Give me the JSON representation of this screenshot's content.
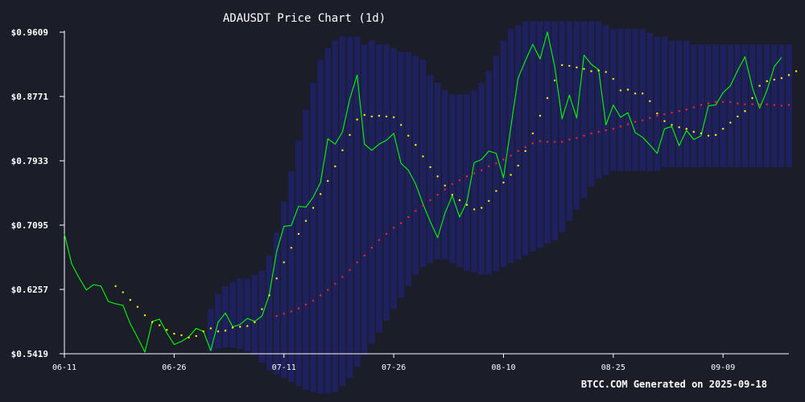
{
  "chart_data": {
    "type": "line",
    "title": "ADAUSDT Price Chart (1d)",
    "footer": "BTCC.COM Generated on 2025-09-18",
    "xlabel": "",
    "ylabel": "",
    "y_ticks": [
      "$0.9609",
      "$0.8771",
      "$0.7933",
      "$0.7095",
      "$0.6257",
      "$0.5419"
    ],
    "y_tick_values": [
      0.9609,
      0.8771,
      0.7933,
      0.7095,
      0.6257,
      0.5419
    ],
    "ylim": [
      0.5419,
      0.9609
    ],
    "x_ticks": [
      "06-11",
      "06-26",
      "07-11",
      "07-26",
      "08-10",
      "08-25",
      "09-09"
    ],
    "x_tick_days": [
      0,
      15,
      30,
      45,
      60,
      75,
      90
    ],
    "xlim_days": [
      0,
      99
    ],
    "grid": false,
    "legend": "none",
    "colors": {
      "background": "#1b1d29",
      "price": "#00ff00",
      "ma_short": "#ffff00",
      "ma_long": "#ff2020",
      "band": "#23238a",
      "axis": "#ffffff"
    },
    "series": [
      {
        "key": "price",
        "style": "line",
        "x_start_day": 0,
        "values": [
          0.698,
          0.659,
          0.641,
          0.625,
          0.632,
          0.63,
          0.61,
          0.607,
          0.605,
          0.581,
          0.563,
          0.544,
          0.584,
          0.587,
          0.569,
          0.554,
          0.558,
          0.564,
          0.575,
          0.571,
          0.546,
          0.583,
          0.595,
          0.577,
          0.58,
          0.588,
          0.584,
          0.591,
          0.619,
          0.675,
          0.708,
          0.709,
          0.734,
          0.733,
          0.746,
          0.765,
          0.822,
          0.815,
          0.831,
          0.874,
          0.905,
          0.815,
          0.807,
          0.815,
          0.82,
          0.829,
          0.79,
          0.781,
          0.763,
          0.737,
          0.714,
          0.693,
          0.725,
          0.748,
          0.72,
          0.74,
          0.791,
          0.795,
          0.806,
          0.803,
          0.771,
          0.837,
          0.901,
          0.924,
          0.945,
          0.926,
          0.961,
          0.916,
          0.848,
          0.879,
          0.849,
          0.931,
          0.919,
          0.912,
          0.84,
          0.866,
          0.85,
          0.856,
          0.83,
          0.824,
          0.814,
          0.803,
          0.835,
          0.838,
          0.813,
          0.833,
          0.821,
          0.826,
          0.865,
          0.866,
          0.882,
          0.891,
          0.911,
          0.929,
          0.889,
          0.862,
          0.885,
          0.916,
          0.928
        ]
      },
      {
        "key": "ma_short",
        "style": "dots",
        "x_start_day": 7,
        "values": [
          0.63,
          0.622,
          0.612,
          0.603,
          0.592,
          0.583,
          0.579,
          0.573,
          0.568,
          0.566,
          0.563,
          0.565,
          0.571,
          0.575,
          0.571,
          0.572,
          0.576,
          0.577,
          0.578,
          0.583,
          0.6,
          0.618,
          0.64,
          0.661,
          0.68,
          0.698,
          0.715,
          0.732,
          0.75,
          0.767,
          0.786,
          0.807,
          0.827,
          0.847,
          0.853,
          0.851,
          0.852,
          0.851,
          0.85,
          0.84,
          0.826,
          0.814,
          0.799,
          0.785,
          0.773,
          0.761,
          0.749,
          0.742,
          0.736,
          0.73,
          0.732,
          0.741,
          0.754,
          0.765,
          0.775,
          0.787,
          0.806,
          0.829,
          0.852,
          0.875,
          0.898,
          0.918,
          0.917,
          0.915,
          0.913,
          0.91,
          0.911,
          0.909,
          0.9,
          0.885,
          0.886,
          0.881,
          0.881,
          0.871,
          0.855,
          0.845,
          0.84,
          0.837,
          0.835,
          0.831,
          0.829,
          0.826,
          0.827,
          0.835,
          0.843,
          0.851,
          0.858,
          0.875,
          0.891,
          0.897,
          0.899,
          0.901,
          0.905,
          0.91
        ]
      },
      {
        "key": "ma_long",
        "style": "dots",
        "x_start_day": 29,
        "values": [
          0.591,
          0.594,
          0.597,
          0.601,
          0.606,
          0.611,
          0.618,
          0.625,
          0.633,
          0.642,
          0.651,
          0.661,
          0.67,
          0.68,
          0.69,
          0.698,
          0.706,
          0.712,
          0.72,
          0.728,
          0.735,
          0.742,
          0.749,
          0.756,
          0.763,
          0.768,
          0.773,
          0.777,
          0.781,
          0.786,
          0.79,
          0.795,
          0.8,
          0.806,
          0.811,
          0.816,
          0.819,
          0.818,
          0.818,
          0.818,
          0.821,
          0.823,
          0.826,
          0.829,
          0.831,
          0.833,
          0.835,
          0.838,
          0.841,
          0.844,
          0.846,
          0.849,
          0.852,
          0.854,
          0.856,
          0.858,
          0.86,
          0.863,
          0.866,
          0.868,
          0.87,
          0.87,
          0.87,
          0.868,
          0.867,
          0.867,
          0.867,
          0.867,
          0.866,
          0.865,
          0.866
        ]
      }
    ],
    "bands": {
      "x_start_day": 20,
      "upper": [
        0.6,
        0.62,
        0.63,
        0.635,
        0.64,
        0.64,
        0.645,
        0.65,
        0.67,
        0.7,
        0.74,
        0.78,
        0.82,
        0.86,
        0.895,
        0.925,
        0.94,
        0.95,
        0.955,
        0.955,
        0.955,
        0.945,
        0.95,
        0.945,
        0.945,
        0.94,
        0.935,
        0.935,
        0.93,
        0.925,
        0.905,
        0.895,
        0.885,
        0.88,
        0.88,
        0.88,
        0.885,
        0.895,
        0.91,
        0.93,
        0.95,
        0.965,
        0.97,
        0.975,
        0.975,
        0.975,
        0.975,
        0.975,
        0.975,
        0.975,
        0.975,
        0.975,
        0.975,
        0.975,
        0.97,
        0.965,
        0.965,
        0.965,
        0.965,
        0.965,
        0.96,
        0.955,
        0.955,
        0.95,
        0.95,
        0.95,
        0.945,
        0.945,
        0.945,
        0.945,
        0.945,
        0.945,
        0.945,
        0.945,
        0.945,
        0.945,
        0.945,
        0.945,
        0.945,
        0.945
      ],
      "lower": [
        0.545,
        0.548,
        0.55,
        0.55,
        0.548,
        0.545,
        0.54,
        0.53,
        0.52,
        0.515,
        0.51,
        0.505,
        0.5,
        0.495,
        0.492,
        0.49,
        0.49,
        0.492,
        0.5,
        0.51,
        0.525,
        0.54,
        0.555,
        0.57,
        0.585,
        0.6,
        0.615,
        0.63,
        0.645,
        0.655,
        0.66,
        0.665,
        0.665,
        0.66,
        0.655,
        0.65,
        0.648,
        0.645,
        0.645,
        0.65,
        0.655,
        0.66,
        0.665,
        0.67,
        0.675,
        0.68,
        0.685,
        0.69,
        0.7,
        0.715,
        0.73,
        0.745,
        0.76,
        0.77,
        0.775,
        0.78,
        0.78,
        0.78,
        0.78,
        0.78,
        0.78,
        0.78,
        0.785,
        0.785,
        0.785,
        0.785,
        0.785,
        0.785,
        0.785,
        0.785,
        0.785,
        0.785,
        0.785,
        0.785,
        0.785,
        0.785,
        0.785,
        0.785,
        0.785,
        0.785
      ]
    }
  }
}
